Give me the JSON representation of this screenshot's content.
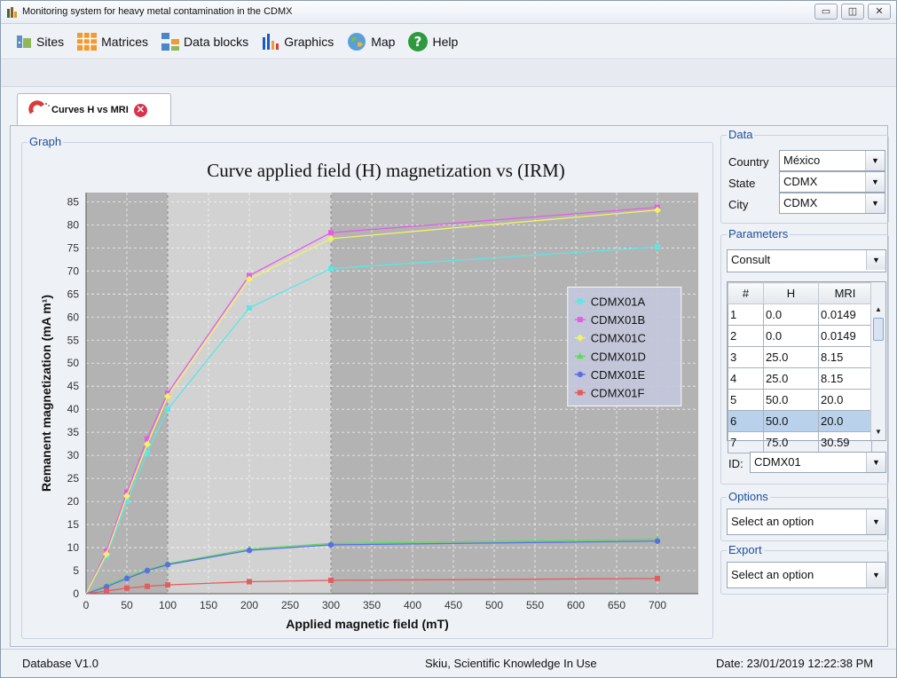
{
  "window": {
    "title": "Monitoring system for heavy metal contamination in the CDMX",
    "controls": [
      "minimize",
      "restore",
      "close"
    ]
  },
  "menu": [
    {
      "label": "Sites",
      "icon": "sites-icon"
    },
    {
      "label": "Matrices",
      "icon": "matrices-icon"
    },
    {
      "label": "Data blocks",
      "icon": "data-blocks-icon"
    },
    {
      "label": "Graphics",
      "icon": "graphics-icon"
    },
    {
      "label": "Map",
      "icon": "globe-icon"
    },
    {
      "label": "Help",
      "icon": "help-icon"
    }
  ],
  "tab": {
    "label": "Curves H vs MRI",
    "icon": "magnet-icon"
  },
  "graph": {
    "group_title": "Graph"
  },
  "chart_data": {
    "type": "line",
    "title": "Curve applied field (H) magnetization vs (IRM)",
    "xlabel": "Applied magnetic field (mT)",
    "ylabel": "Remanent magnetization (mA m¹)",
    "xlim": [
      0,
      750
    ],
    "ylim": [
      0,
      87
    ],
    "xticks": [
      0,
      50,
      100,
      150,
      200,
      250,
      300,
      350,
      400,
      450,
      500,
      550,
      600,
      650,
      700
    ],
    "yticks": [
      0,
      5,
      10,
      15,
      20,
      25,
      30,
      35,
      40,
      45,
      50,
      55,
      60,
      65,
      70,
      75,
      80,
      85
    ],
    "grid": true,
    "legend_position": "right",
    "series": [
      {
        "name": "CDMX01A",
        "color": "#5ce6e6",
        "marker": "square",
        "x": [
          0,
          25,
          50,
          75,
          100,
          200,
          300,
          700
        ],
        "y": [
          0,
          8.2,
          20.0,
          30.6,
          40.0,
          62.0,
          70.5,
          75.2
        ]
      },
      {
        "name": "CDMX01B",
        "color": "#e65ce6",
        "marker": "square",
        "x": [
          0,
          25,
          50,
          75,
          100,
          200,
          300,
          700
        ],
        "y": [
          0,
          9.2,
          22.0,
          33.6,
          43.5,
          69.0,
          78.3,
          83.8
        ]
      },
      {
        "name": "CDMX01C",
        "color": "#f2f266",
        "marker": "diamond",
        "x": [
          0,
          25,
          50,
          75,
          100,
          200,
          300,
          700
        ],
        "y": [
          0,
          8.6,
          21.2,
          32.4,
          42.8,
          68.2,
          77.0,
          83.2
        ]
      },
      {
        "name": "CDMX01D",
        "color": "#5cdc5c",
        "marker": "triangle",
        "x": [
          0,
          25,
          50,
          75,
          100,
          200,
          300,
          700
        ],
        "y": [
          0,
          1.8,
          3.6,
          5.2,
          6.5,
          9.7,
          10.9,
          11.8
        ]
      },
      {
        "name": "CDMX01E",
        "color": "#5a6ee6",
        "marker": "circle",
        "x": [
          0,
          25,
          50,
          75,
          100,
          200,
          300,
          700
        ],
        "y": [
          0,
          1.5,
          3.3,
          5.0,
          6.3,
          9.4,
          10.6,
          11.4
        ]
      },
      {
        "name": "CDMX01F",
        "color": "#e65c5c",
        "marker": "square",
        "x": [
          0,
          25,
          50,
          75,
          100,
          200,
          300,
          700
        ],
        "y": [
          0,
          0.6,
          1.2,
          1.6,
          1.9,
          2.6,
          2.9,
          3.3
        ]
      }
    ]
  },
  "data_panel": {
    "title": "Data",
    "country_label": "Country",
    "country_value": "México",
    "state_label": "State",
    "state_value": "CDMX",
    "city_label": "City",
    "city_value": "CDMX"
  },
  "parameters_panel": {
    "title": "Parameters",
    "consult_value": "Consult",
    "table": {
      "headers": [
        "#",
        "H",
        "MRI"
      ],
      "rows": [
        [
          "1",
          "0.0",
          "0.0149"
        ],
        [
          "2",
          "0.0",
          "0.0149"
        ],
        [
          "3",
          "25.0",
          "8.15"
        ],
        [
          "4",
          "25.0",
          "8.15"
        ],
        [
          "5",
          "50.0",
          "20.0"
        ],
        [
          "6",
          "50.0",
          "20.0"
        ],
        [
          "7",
          "75.0",
          "30.59"
        ]
      ],
      "selected_row": 5
    },
    "id_label": "ID:",
    "id_value": "CDMX01"
  },
  "options_panel": {
    "title": "Options",
    "value": "Select an option"
  },
  "export_panel": {
    "title": "Export",
    "value": "Select an option"
  },
  "status": {
    "left": "Database V1.0",
    "center": "Skiu, Scientific Knowledge In Use",
    "right": "Date: 23/01/2019 12:22:38 PM"
  }
}
